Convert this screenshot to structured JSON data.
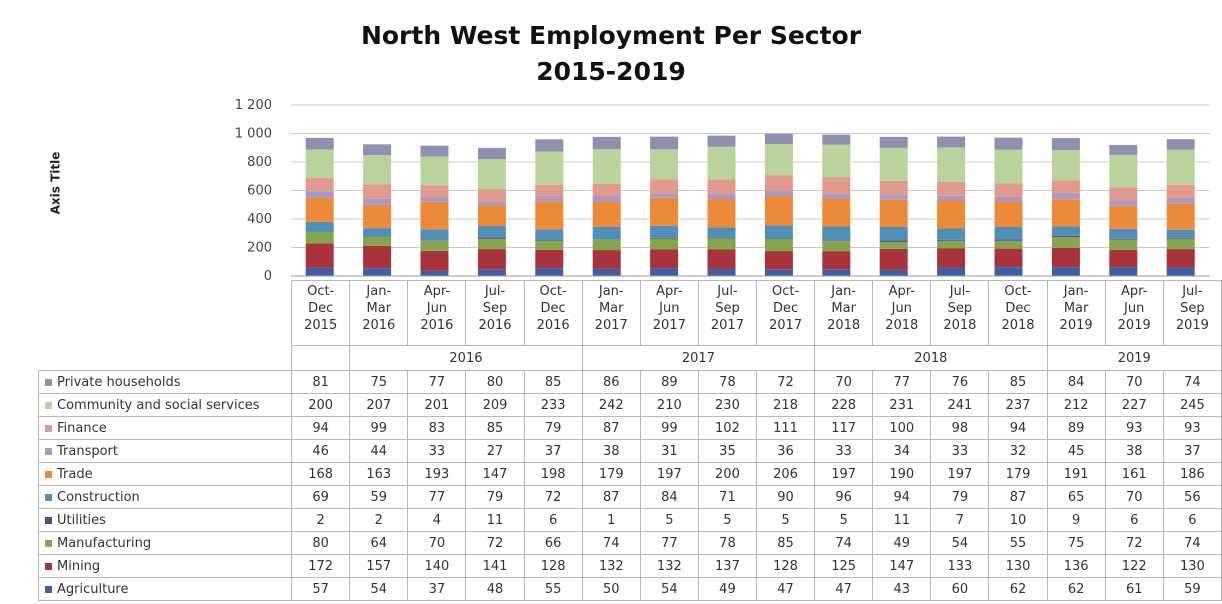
{
  "chart_data": {
    "type": "bar",
    "stacked": true,
    "title_lines": [
      "North West Employment Per Sector",
      "2015-2019"
    ],
    "ylabel": "Axis Title",
    "ylim": [
      0,
      1200
    ],
    "yticks": [
      "0",
      "200",
      "400",
      "600",
      "800",
      "1 000",
      "1 200"
    ],
    "ytick_values": [
      0,
      200,
      400,
      600,
      800,
      1000,
      1200
    ],
    "grid": true,
    "legend_placement": "table-below",
    "categories": [
      [
        "Oct-",
        "Dec",
        "2015"
      ],
      [
        "Jan-",
        "Mar",
        "2016"
      ],
      [
        "Apr-",
        "Jun",
        "2016"
      ],
      [
        "Jul-",
        "Sep",
        "2016"
      ],
      [
        "Oct-",
        "Dec",
        "2016"
      ],
      [
        "Jan-",
        "Mar",
        "2017"
      ],
      [
        "Apr-",
        "Jun",
        "2017"
      ],
      [
        "Jul-",
        "Sep",
        "2017"
      ],
      [
        "Oct-",
        "Dec",
        "2017"
      ],
      [
        "Jan-",
        "Mar",
        "2018"
      ],
      [
        "Apr-",
        "Jun",
        "2018"
      ],
      [
        "Jul-",
        "Sep",
        "2018"
      ],
      [
        "Oct-",
        "Dec",
        "2018"
      ],
      [
        "Jan-",
        "Mar",
        "2019"
      ],
      [
        "Apr-",
        "Jun",
        "2019"
      ],
      [
        "Jul-",
        "Sep",
        "2019"
      ]
    ],
    "year_groups": [
      {
        "label": "",
        "span": 1
      },
      {
        "label": "2016",
        "span": 4
      },
      {
        "label": "2017",
        "span": 4
      },
      {
        "label": "2018",
        "span": 4
      },
      {
        "label": "2019",
        "span": 3
      }
    ],
    "series": [
      {
        "name": "Private households",
        "color": "#8f8faf",
        "values": [
          81,
          75,
          77,
          80,
          85,
          86,
          89,
          78,
          72,
          70,
          77,
          76,
          85,
          84,
          70,
          74
        ]
      },
      {
        "name": "Community and social services",
        "color": "#b9d49a",
        "values": [
          200,
          207,
          201,
          209,
          233,
          242,
          210,
          230,
          218,
          228,
          231,
          241,
          237,
          212,
          227,
          245
        ]
      },
      {
        "name": "Finance",
        "color": "#e39a8e",
        "values": [
          94,
          99,
          83,
          85,
          79,
          87,
          99,
          102,
          111,
          117,
          100,
          98,
          94,
          89,
          93,
          93
        ]
      },
      {
        "name": "Transport",
        "color": "#a99ac4",
        "values": [
          46,
          44,
          33,
          27,
          37,
          38,
          31,
          35,
          36,
          33,
          34,
          33,
          32,
          45,
          38,
          37
        ]
      },
      {
        "name": "Trade",
        "color": "#ec8a3a",
        "values": [
          168,
          163,
          193,
          147,
          198,
          179,
          197,
          200,
          206,
          197,
          190,
          197,
          179,
          191,
          161,
          186
        ]
      },
      {
        "name": "Construction",
        "color": "#4f8fba",
        "values": [
          69,
          59,
          77,
          79,
          72,
          87,
          84,
          71,
          90,
          96,
          94,
          79,
          87,
          65,
          70,
          56
        ]
      },
      {
        "name": "Utilities",
        "color": "#5c4a86",
        "values": [
          2,
          2,
          4,
          11,
          6,
          1,
          5,
          5,
          5,
          5,
          11,
          7,
          10,
          9,
          6,
          6
        ]
      },
      {
        "name": "Manufacturing",
        "color": "#86a64e",
        "values": [
          80,
          64,
          70,
          72,
          66,
          74,
          77,
          78,
          85,
          74,
          49,
          54,
          55,
          75,
          72,
          74
        ]
      },
      {
        "name": "Mining",
        "color": "#a8333a",
        "values": [
          172,
          157,
          140,
          141,
          128,
          132,
          132,
          137,
          128,
          125,
          147,
          133,
          130,
          136,
          122,
          130
        ]
      },
      {
        "name": "Agriculture",
        "color": "#3d5fa8",
        "values": [
          57,
          54,
          37,
          48,
          55,
          50,
          54,
          49,
          47,
          47,
          43,
          60,
          62,
          62,
          61,
          59
        ]
      }
    ]
  }
}
